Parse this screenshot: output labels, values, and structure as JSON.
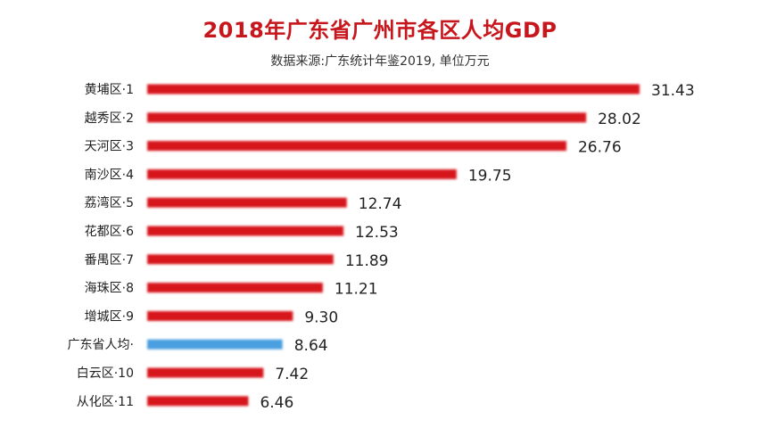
{
  "chart_data": {
    "type": "bar",
    "orientation": "horizontal",
    "title": "2018年广东省广州市各区人均GDP",
    "subtitle": "数据来源:广东统计年鉴2019, 单位万元",
    "categories": [
      "黄埔区·1",
      "越秀区·2",
      "天河区·3",
      "南沙区·4",
      "荔湾区·5",
      "花都区·6",
      "番禺区·7",
      "海珠区·8",
      "增城区·9",
      "广东省人均·",
      "白云区·10",
      "从化区·11"
    ],
    "values": [
      31.43,
      28.02,
      26.76,
      19.75,
      12.74,
      12.53,
      11.89,
      11.21,
      9.3,
      8.64,
      7.42,
      6.46
    ],
    "value_labels": [
      "31.43",
      "28.02",
      "26.76",
      "19.75",
      "12.74",
      "12.53",
      "11.89",
      "11.21",
      "9.30",
      "8.64",
      "7.42",
      "6.46"
    ],
    "highlight_index": 9,
    "xlim": [
      0,
      31.43
    ],
    "xlabel": "",
    "ylabel": "",
    "grid": false,
    "colors": {
      "bar": "#d7141a",
      "highlight": "#4a9fe0",
      "title": "#c8161d"
    }
  }
}
